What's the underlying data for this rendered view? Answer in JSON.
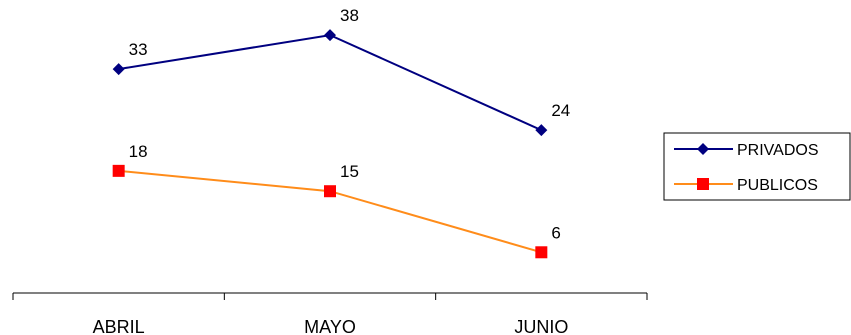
{
  "chart_data": {
    "type": "line",
    "title": "                  ",
    "categories": [
      "ABRIL",
      "MAYO",
      "JUNIO"
    ],
    "series": [
      {
        "name": "PRIVADOS",
        "values": [
          33,
          38,
          24
        ],
        "color": "#000080",
        "marker": "diamond"
      },
      {
        "name": "PUBLICOS",
        "values": [
          18,
          15,
          6
        ],
        "color": "#ff8c1a",
        "marker_color": "#ff0000",
        "marker": "square"
      }
    ],
    "xlabel": "",
    "ylabel": "",
    "ylim": [
      0,
      42
    ],
    "grid": false,
    "legend_position": "right"
  }
}
